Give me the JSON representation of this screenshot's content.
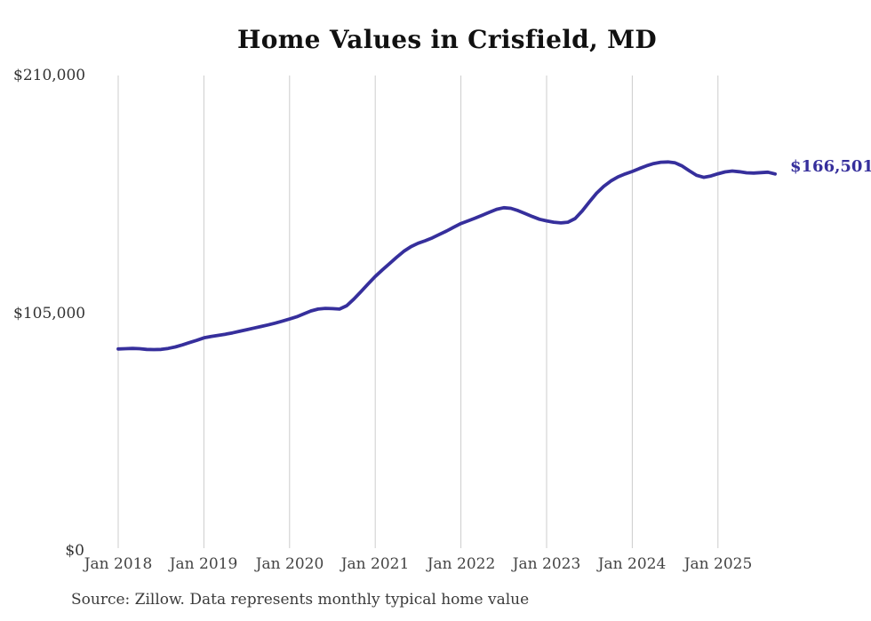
{
  "chart": {
    "title": "Home Values in Crisfield, MD",
    "source": "Source: Zillow. Data represents monthly typical home value",
    "end_label": "$166,501",
    "line_color": "#362f9c",
    "grid_color": "#cccccc"
  },
  "chart_data": {
    "type": "line",
    "title": "Home Values in Crisfield, MD",
    "ylabel": "",
    "xlabel": "",
    "ylim": [
      0,
      210000
    ],
    "grid": "vertical-only",
    "legend": "none",
    "annotation_last_value": "$166,501",
    "source": "Source: Zillow. Data represents monthly typical home value",
    "y_ticks": [
      {
        "value": 210000,
        "label": "$210,000"
      },
      {
        "value": 105000,
        "label": "$105,000"
      },
      {
        "value": 0,
        "label": "$0"
      }
    ],
    "x_ticks": [
      {
        "month_index": 0,
        "label": "Jan 2018"
      },
      {
        "month_index": 12,
        "label": "Jan 2019"
      },
      {
        "month_index": 24,
        "label": "Jan 2020"
      },
      {
        "month_index": 36,
        "label": "Jan 2021"
      },
      {
        "month_index": 48,
        "label": "Jan 2022"
      },
      {
        "month_index": 60,
        "label": "Jan 2023"
      },
      {
        "month_index": 72,
        "label": "Jan 2024"
      },
      {
        "month_index": 84,
        "label": "Jan 2025"
      }
    ],
    "x": [
      "2018-01",
      "2018-02",
      "2018-03",
      "2018-04",
      "2018-05",
      "2018-06",
      "2018-07",
      "2018-08",
      "2018-09",
      "2018-10",
      "2018-11",
      "2018-12",
      "2019-01",
      "2019-02",
      "2019-03",
      "2019-04",
      "2019-05",
      "2019-06",
      "2019-07",
      "2019-08",
      "2019-09",
      "2019-10",
      "2019-11",
      "2019-12",
      "2020-01",
      "2020-02",
      "2020-03",
      "2020-04",
      "2020-05",
      "2020-06",
      "2020-07",
      "2020-08",
      "2020-09",
      "2020-10",
      "2020-11",
      "2020-12",
      "2021-01",
      "2021-02",
      "2021-03",
      "2021-04",
      "2021-05",
      "2021-06",
      "2021-07",
      "2021-08",
      "2021-09",
      "2021-10",
      "2021-11",
      "2021-12",
      "2022-01",
      "2022-02",
      "2022-03",
      "2022-04",
      "2022-05",
      "2022-06",
      "2022-07",
      "2022-08",
      "2022-09",
      "2022-10",
      "2022-11",
      "2022-12",
      "2023-01",
      "2023-02",
      "2023-03",
      "2023-04",
      "2023-05",
      "2023-06",
      "2023-07",
      "2023-08",
      "2023-09",
      "2023-10",
      "2023-11",
      "2023-12",
      "2024-01",
      "2024-02",
      "2024-03",
      "2024-04",
      "2024-05",
      "2024-06",
      "2024-07",
      "2024-08",
      "2024-09",
      "2024-10",
      "2024-11",
      "2024-12",
      "2025-01",
      "2025-02",
      "2025-03",
      "2025-04",
      "2025-05",
      "2025-06",
      "2025-07",
      "2025-08",
      "2025-09"
    ],
    "values": [
      89200,
      89300,
      89400,
      89300,
      89000,
      88900,
      89000,
      89400,
      90100,
      91000,
      92000,
      93000,
      94100,
      94700,
      95200,
      95700,
      96300,
      97000,
      97700,
      98400,
      99100,
      99800,
      100600,
      101500,
      102400,
      103400,
      104700,
      106000,
      106800,
      107100,
      107000,
      106800,
      108300,
      111200,
      114500,
      117900,
      121200,
      124100,
      126900,
      129700,
      132300,
      134400,
      135900,
      137000,
      138300,
      139800,
      141300,
      143000,
      144600,
      145800,
      147000,
      148300,
      149600,
      150900,
      151600,
      151300,
      150300,
      149000,
      147700,
      146500,
      145800,
      145200,
      144900,
      145200,
      146800,
      150200,
      154200,
      158000,
      161000,
      163400,
      165200,
      166500,
      167600,
      168900,
      170100,
      171100,
      171700,
      171800,
      171400,
      170000,
      167900,
      165900,
      165000,
      165600,
      166600,
      167400,
      167800,
      167500,
      167000,
      166900,
      167100,
      167300,
      166501
    ]
  }
}
